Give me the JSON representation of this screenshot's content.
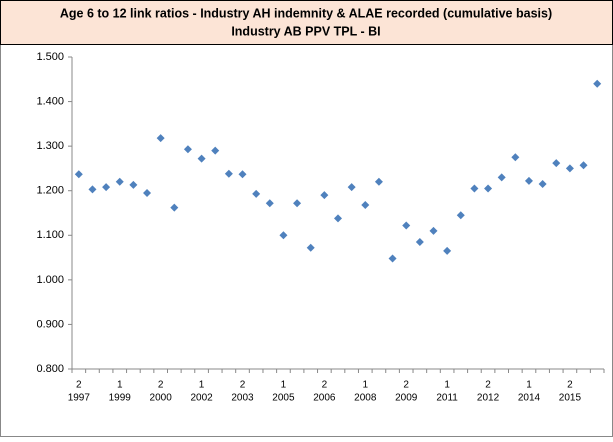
{
  "chart_data": {
    "type": "scatter",
    "title": "Age 6 to 12 link ratios - Industry AH indemnity & ALAE recorded (cumulative basis)",
    "subtitle": "Industry AB PPV TPL - BI",
    "color": "#4f81bd",
    "categories": [
      [
        "2",
        "1997"
      ],
      null,
      null,
      [
        "1",
        "1999"
      ],
      null,
      null,
      [
        "2",
        "2000"
      ],
      null,
      null,
      [
        "1",
        "2002"
      ],
      null,
      null,
      [
        "2",
        "2003"
      ],
      null,
      null,
      [
        "1",
        "2005"
      ],
      null,
      null,
      [
        "2",
        "2006"
      ],
      null,
      null,
      [
        "1",
        "2008"
      ],
      null,
      null,
      [
        "2",
        "2009"
      ],
      null,
      null,
      [
        "1",
        "2011"
      ],
      null,
      null,
      [
        "2",
        "2012"
      ],
      null,
      null,
      [
        "1",
        "2014"
      ],
      null,
      null,
      [
        "2",
        "2015"
      ],
      null,
      null
    ],
    "values": [
      1.237,
      1.203,
      1.208,
      1.22,
      1.213,
      1.195,
      1.318,
      1.162,
      1.293,
      1.272,
      1.29,
      1.238,
      1.237,
      1.193,
      1.172,
      1.1,
      1.172,
      1.072,
      1.19,
      1.138,
      1.208,
      1.168,
      1.22,
      1.048,
      1.122,
      1.085,
      1.11,
      1.065,
      1.145,
      1.205,
      1.205,
      1.23,
      1.275,
      1.222,
      1.215,
      1.262,
      1.25,
      1.257,
      1.44
    ],
    "ylim": [
      0.8,
      1.5
    ],
    "yticks": [
      {
        "value": 0.8,
        "label": "0.800"
      },
      {
        "value": 0.9,
        "label": "0.900"
      },
      {
        "value": 1.0,
        "label": "1.000"
      },
      {
        "value": 1.1,
        "label": "1.100"
      },
      {
        "value": 1.2,
        "label": "1.200"
      },
      {
        "value": 1.3,
        "label": "1.300"
      },
      {
        "value": 1.4,
        "label": "1.400"
      },
      {
        "value": 1.5,
        "label": "1.500"
      }
    ],
    "grid": false
  }
}
